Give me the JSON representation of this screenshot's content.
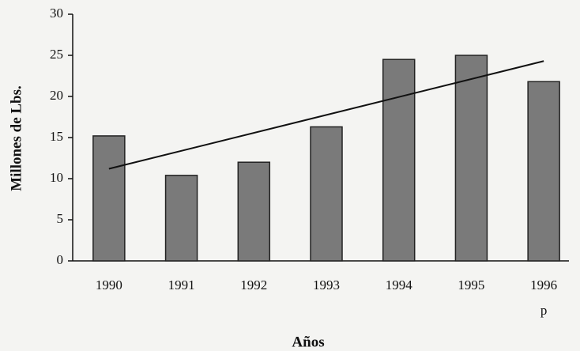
{
  "chart_data": {
    "type": "bar",
    "categories": [
      "1990",
      "1991",
      "1992",
      "1993",
      "1994",
      "1995",
      "1996"
    ],
    "values": [
      15.2,
      10.4,
      12,
      16.3,
      24.5,
      25,
      21.8
    ],
    "color": "#7a7a7a",
    "trend": {
      "values": [
        11.2,
        24.3
      ],
      "color": "#111111"
    },
    "annotation": "p",
    "xlabel": "Años",
    "ylabel": "Millones de Lbs.",
    "ylim": [
      0,
      30
    ],
    "yticks": [
      0,
      5,
      10,
      15,
      20,
      25,
      30
    ],
    "grid": false
  }
}
